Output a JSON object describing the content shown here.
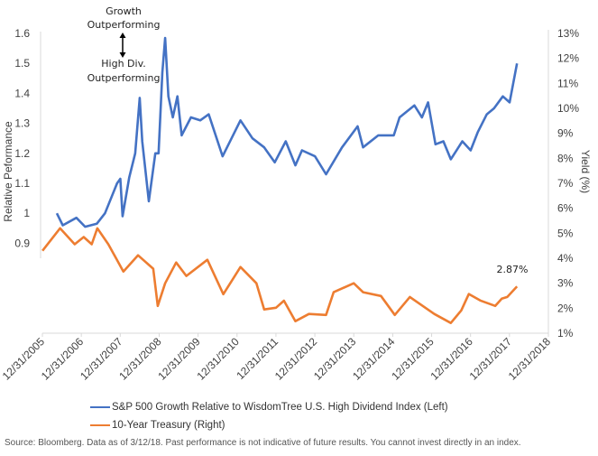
{
  "chart_data": {
    "type": "line",
    "annotation_top": "Growth",
    "annotation_top2": "Outperforming",
    "annotation_bottom": "High Div.",
    "annotation_bottom2": "Outperforming",
    "ylabel_left": "Relative Peformance",
    "ylabel_right": "Yield (%)",
    "y_left_ticks": [
      "1.6",
      "1.5",
      "1.4",
      "1.3",
      "1.2",
      "1.1",
      "1",
      "0.9"
    ],
    "y_left_lim": [
      0.6,
      1.6
    ],
    "y_right_ticks": [
      "13%",
      "12%",
      "11%",
      "10%",
      "9%",
      "8%",
      "7%",
      "6%",
      "5%",
      "4%",
      "3%",
      "2%",
      "1%"
    ],
    "y_right_lim": [
      1,
      13
    ],
    "x_ticks": [
      "12/31/2005",
      "12/31/2006",
      "12/31/2007",
      "12/31/2008",
      "12/31/2009",
      "12/31/2010",
      "12/31/2011",
      "12/31/2012",
      "12/31/2013",
      "12/31/2014",
      "12/31/2015",
      "12/31/2016",
      "12/31/2017",
      "12/31/2018"
    ],
    "x_lim": [
      "2005-12-31",
      "2018-12-31"
    ],
    "grid": false,
    "legend_placement": "bottom",
    "end_label": "2.87%",
    "series": [
      {
        "name": "S&P 500 Growth Relative to WisdomTree U.S. High Dividend Index (Left)",
        "axis": "left",
        "color": "#4472C4",
        "points": [
          [
            "2006-05-15",
            1.0
          ],
          [
            "2006-07-10",
            0.96
          ],
          [
            "2006-11-15",
            0.985
          ],
          [
            "2007-02-05",
            0.955
          ],
          [
            "2007-05-25",
            0.965
          ],
          [
            "2007-08-10",
            1.0
          ],
          [
            "2007-12-01",
            1.1
          ],
          [
            "2008-01-01",
            1.115
          ],
          [
            "2008-01-22",
            0.99
          ],
          [
            "2008-03-25",
            1.12
          ],
          [
            "2008-05-20",
            1.2
          ],
          [
            "2008-07-01",
            1.385
          ],
          [
            "2008-07-25",
            1.24
          ],
          [
            "2008-09-25",
            1.04
          ],
          [
            "2008-11-25",
            1.2
          ],
          [
            "2008-12-25",
            1.2
          ],
          [
            "2009-01-30",
            1.47
          ],
          [
            "2009-02-25",
            1.585
          ],
          [
            "2009-03-28",
            1.39
          ],
          [
            "2009-05-08",
            1.32
          ],
          [
            "2009-06-20",
            1.39
          ],
          [
            "2009-07-30",
            1.26
          ],
          [
            "2009-10-25",
            1.32
          ],
          [
            "2010-01-20",
            1.31
          ],
          [
            "2010-04-10",
            1.33
          ],
          [
            "2010-08-18",
            1.19
          ],
          [
            "2011-02-01",
            1.31
          ],
          [
            "2011-05-25",
            1.25
          ],
          [
            "2011-09-12",
            1.22
          ],
          [
            "2011-12-20",
            1.17
          ],
          [
            "2012-04-01",
            1.24
          ],
          [
            "2012-07-01",
            1.16
          ],
          [
            "2012-09-01",
            1.21
          ],
          [
            "2013-01-01",
            1.19
          ],
          [
            "2013-04-15",
            1.13
          ],
          [
            "2013-09-12",
            1.22
          ],
          [
            "2014-02-05",
            1.29
          ],
          [
            "2014-03-28",
            1.22
          ],
          [
            "2014-08-18",
            1.26
          ],
          [
            "2015-01-10",
            1.26
          ],
          [
            "2015-03-05",
            1.32
          ],
          [
            "2015-07-22",
            1.36
          ],
          [
            "2015-10-01",
            1.32
          ],
          [
            "2015-11-28",
            1.37
          ],
          [
            "2016-02-05",
            1.23
          ],
          [
            "2016-04-20",
            1.24
          ],
          [
            "2016-06-28",
            1.18
          ],
          [
            "2016-10-15",
            1.24
          ],
          [
            "2017-01-01",
            1.21
          ],
          [
            "2017-03-08",
            1.27
          ],
          [
            "2017-06-01",
            1.33
          ],
          [
            "2017-08-08",
            1.35
          ],
          [
            "2017-10-30",
            1.39
          ],
          [
            "2018-01-01",
            1.37
          ],
          [
            "2018-03-12",
            1.5
          ]
        ]
      },
      {
        "name": "10-Year Treasury (Right)",
        "axis": "right",
        "color": "#ED7D31",
        "points": [
          [
            "2006-01-01",
            4.3
          ],
          [
            "2006-06-15",
            5.2
          ],
          [
            "2006-10-30",
            4.56
          ],
          [
            "2007-01-22",
            4.85
          ],
          [
            "2007-04-08",
            4.56
          ],
          [
            "2007-05-30",
            5.2
          ],
          [
            "2007-09-10",
            4.56
          ],
          [
            "2008-01-30",
            3.47
          ],
          [
            "2008-06-15",
            4.12
          ],
          [
            "2008-11-05",
            3.58
          ],
          [
            "2008-12-18",
            2.09
          ],
          [
            "2009-02-25",
            3.0
          ],
          [
            "2009-06-08",
            3.83
          ],
          [
            "2009-09-12",
            3.29
          ],
          [
            "2010-03-28",
            3.94
          ],
          [
            "2010-08-25",
            2.56
          ],
          [
            "2011-02-01",
            3.65
          ],
          [
            "2011-07-01",
            3.0
          ],
          [
            "2011-09-12",
            1.95
          ],
          [
            "2012-01-01",
            2.02
          ],
          [
            "2012-03-15",
            2.3
          ],
          [
            "2012-07-01",
            1.48
          ],
          [
            "2012-11-05",
            1.77
          ],
          [
            "2013-04-15",
            1.73
          ],
          [
            "2013-06-25",
            2.64
          ],
          [
            "2013-12-31",
            3.0
          ],
          [
            "2014-03-28",
            2.64
          ],
          [
            "2014-09-12",
            2.49
          ],
          [
            "2015-01-20",
            1.73
          ],
          [
            "2015-06-10",
            2.45
          ],
          [
            "2016-01-25",
            1.77
          ],
          [
            "2016-06-28",
            1.41
          ],
          [
            "2016-10-05",
            1.91
          ],
          [
            "2016-12-15",
            2.57
          ],
          [
            "2017-04-01",
            2.31
          ],
          [
            "2017-08-20",
            2.09
          ],
          [
            "2017-10-20",
            2.38
          ],
          [
            "2017-12-10",
            2.45
          ],
          [
            "2018-03-12",
            2.87
          ]
        ]
      }
    ]
  },
  "legend": {
    "items": [
      {
        "label": "S&P 500 Growth Relative to WisdomTree U.S. High Dividend Index (Left)",
        "color": "#4472C4"
      },
      {
        "label": "10-Year Treasury (Right)",
        "color": "#ED7D31"
      }
    ]
  },
  "source": "Source: Bloomberg. Data as of 3/12/18. Past performance is not indicative of future results. You cannot invest directly in an index."
}
